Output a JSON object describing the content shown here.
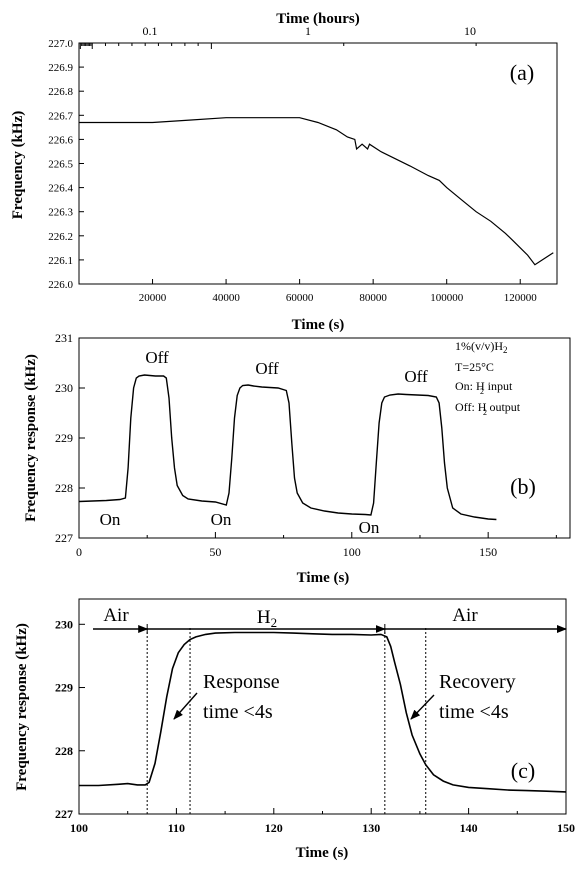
{
  "chart_data": [
    {
      "type": "line",
      "panel_label": "(a)",
      "xlabel": "Time (s)",
      "ylabel": "Frequency (kHz)",
      "top_axis_label": "Time (hours)",
      "top_axis_ticks": [
        "0.1",
        "1",
        "10"
      ],
      "top_axis_scale": "log",
      "xlim": [
        0,
        130000
      ],
      "ylim": [
        226.0,
        227.0
      ],
      "x_ticks": [
        "20000",
        "40000",
        "60000",
        "80000",
        "100000",
        "120000"
      ],
      "y_ticks": [
        "226.0",
        "226.1",
        "226.2",
        "226.3",
        "226.4",
        "226.5",
        "226.6",
        "226.7",
        "226.8",
        "226.9",
        "227.0"
      ],
      "grid": false,
      "series": [
        {
          "x": [
            0,
            10000,
            20000,
            30000,
            40000,
            50000,
            60000,
            65000,
            70000,
            73000,
            75000,
            75500,
            77000,
            78500,
            79000,
            82000,
            86000,
            90000,
            95000,
            98000,
            100000,
            104000,
            108000,
            112000,
            116000,
            118000,
            120000,
            122000,
            124000,
            126000,
            128000,
            129000
          ],
          "y": [
            226.67,
            226.67,
            226.67,
            226.68,
            226.69,
            226.69,
            226.69,
            226.67,
            226.64,
            226.61,
            226.6,
            226.56,
            226.58,
            226.56,
            226.58,
            226.55,
            226.52,
            226.49,
            226.45,
            226.43,
            226.4,
            226.35,
            226.3,
            226.26,
            226.21,
            226.18,
            226.15,
            226.12,
            226.08,
            226.1,
            226.12,
            226.13
          ]
        }
      ]
    },
    {
      "type": "line",
      "panel_label": "(b)",
      "xlabel": "Time (s)",
      "ylabel": "Frequency response (kHz)",
      "xlim": [
        0,
        180
      ],
      "ylim": [
        227,
        231
      ],
      "x_ticks": [
        "0",
        "50",
        "100",
        "150"
      ],
      "y_ticks": [
        "227",
        "228",
        "229",
        "230",
        "231"
      ],
      "grid": false,
      "annotations": {
        "on_labels": [
          "On",
          "On",
          "On"
        ],
        "off_labels": [
          "Off",
          "Off",
          "Off"
        ],
        "legend_lines": [
          "1%(v/v)H",
          "T=25°C",
          "On: H input",
          "Off: H output"
        ],
        "h2_subscript": "2"
      },
      "series": [
        {
          "x": [
            0,
            5,
            10,
            15,
            17,
            18,
            19,
            20,
            21,
            22,
            24,
            26,
            28,
            31,
            32,
            33,
            34,
            35,
            36,
            38,
            40,
            45,
            50,
            54,
            55,
            56,
            57,
            58,
            59,
            60,
            62,
            64,
            67,
            70,
            73,
            76,
            77,
            78,
            79,
            80,
            82,
            85,
            90,
            95,
            100,
            105,
            107,
            108,
            109,
            110,
            111,
            112,
            114,
            117,
            120,
            124,
            128,
            131,
            132,
            133,
            134,
            135,
            137,
            140,
            145,
            150,
            153
          ],
          "y": [
            227.73,
            227.74,
            227.75,
            227.77,
            227.8,
            228.4,
            229.4,
            230.0,
            230.2,
            230.24,
            230.26,
            230.25,
            230.24,
            230.24,
            230.2,
            229.8,
            229.0,
            228.4,
            228.05,
            227.85,
            227.78,
            227.74,
            227.72,
            227.66,
            227.9,
            228.6,
            229.4,
            229.85,
            230.0,
            230.05,
            230.06,
            230.04,
            230.02,
            230.01,
            230.0,
            229.95,
            229.7,
            228.9,
            228.2,
            227.9,
            227.7,
            227.6,
            227.54,
            227.5,
            227.48,
            227.47,
            227.46,
            227.7,
            228.5,
            229.3,
            229.7,
            229.82,
            229.86,
            229.88,
            229.87,
            229.86,
            229.85,
            229.82,
            229.7,
            229.2,
            228.5,
            228.0,
            227.6,
            227.48,
            227.42,
            227.38,
            227.37
          ]
        }
      ]
    },
    {
      "type": "line",
      "panel_label": "(c)",
      "xlabel": "Time (s)",
      "ylabel": "Frequency response (kHz)",
      "xlim": [
        100,
        150
      ],
      "ylim": [
        227,
        230.4
      ],
      "x_ticks": [
        "100",
        "110",
        "120",
        "130",
        "140",
        "150"
      ],
      "y_ticks": [
        "227",
        "228",
        "229",
        "230"
      ],
      "grid": false,
      "region_labels": [
        "Air",
        "H",
        "Air"
      ],
      "h2_subscript": "2",
      "markers_x": [
        107,
        111.4,
        131.4,
        135.6,
        150
      ],
      "annotations": {
        "response": [
          "Response",
          "time <4s"
        ],
        "recovery": [
          "Recovery",
          "time <4s"
        ]
      },
      "series": [
        {
          "x": [
            100,
            102,
            104,
            105,
            106,
            106.8,
            107.2,
            107.8,
            108.4,
            109,
            109.6,
            110.2,
            110.8,
            111.4,
            112,
            113,
            114,
            116,
            118,
            120,
            122,
            124,
            126,
            128,
            130,
            131,
            131.6,
            132,
            132.4,
            133,
            133.6,
            134.2,
            135,
            135.6,
            136.4,
            137.4,
            138.4,
            140,
            142,
            144,
            146,
            148,
            150
          ],
          "y": [
            227.45,
            227.45,
            227.47,
            227.48,
            227.46,
            227.46,
            227.5,
            227.8,
            228.3,
            228.85,
            229.3,
            229.55,
            229.68,
            229.76,
            229.8,
            229.84,
            229.86,
            229.87,
            229.87,
            229.87,
            229.86,
            229.85,
            229.84,
            229.84,
            229.83,
            229.84,
            229.8,
            229.65,
            229.4,
            229.05,
            228.6,
            228.25,
            227.95,
            227.78,
            227.62,
            227.52,
            227.46,
            227.42,
            227.4,
            227.38,
            227.37,
            227.36,
            227.35
          ]
        }
      ]
    }
  ]
}
